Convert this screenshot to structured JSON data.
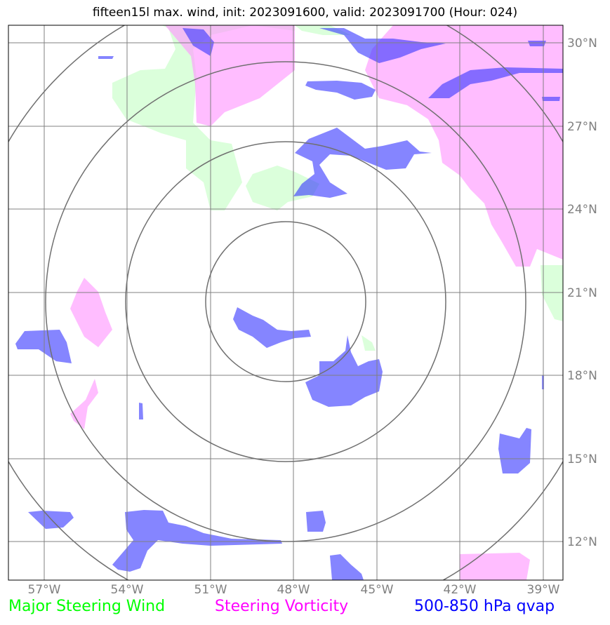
{
  "title": "fifteen15l max. wind, init: 2023091600, valid: 2023091700 (Hour: 024)",
  "lon_ticks": [
    "57°W",
    "54°W",
    "51°W",
    "48°W",
    "45°W",
    "42°W",
    "39°W"
  ],
  "lat_ticks": [
    "30°N",
    "27°N",
    "24°N",
    "21°N",
    "18°N",
    "15°N",
    "12°N"
  ],
  "legend": {
    "wind": "Major Steering Wind",
    "vorticity": "Steering Vorticity",
    "qvap": "500-850 hPa qvap"
  },
  "colors": {
    "wind": "#00ff00",
    "vorticity": "#ff00ff",
    "qvap": "#0000ff",
    "grid": "#808080",
    "rings": "#707070"
  }
}
